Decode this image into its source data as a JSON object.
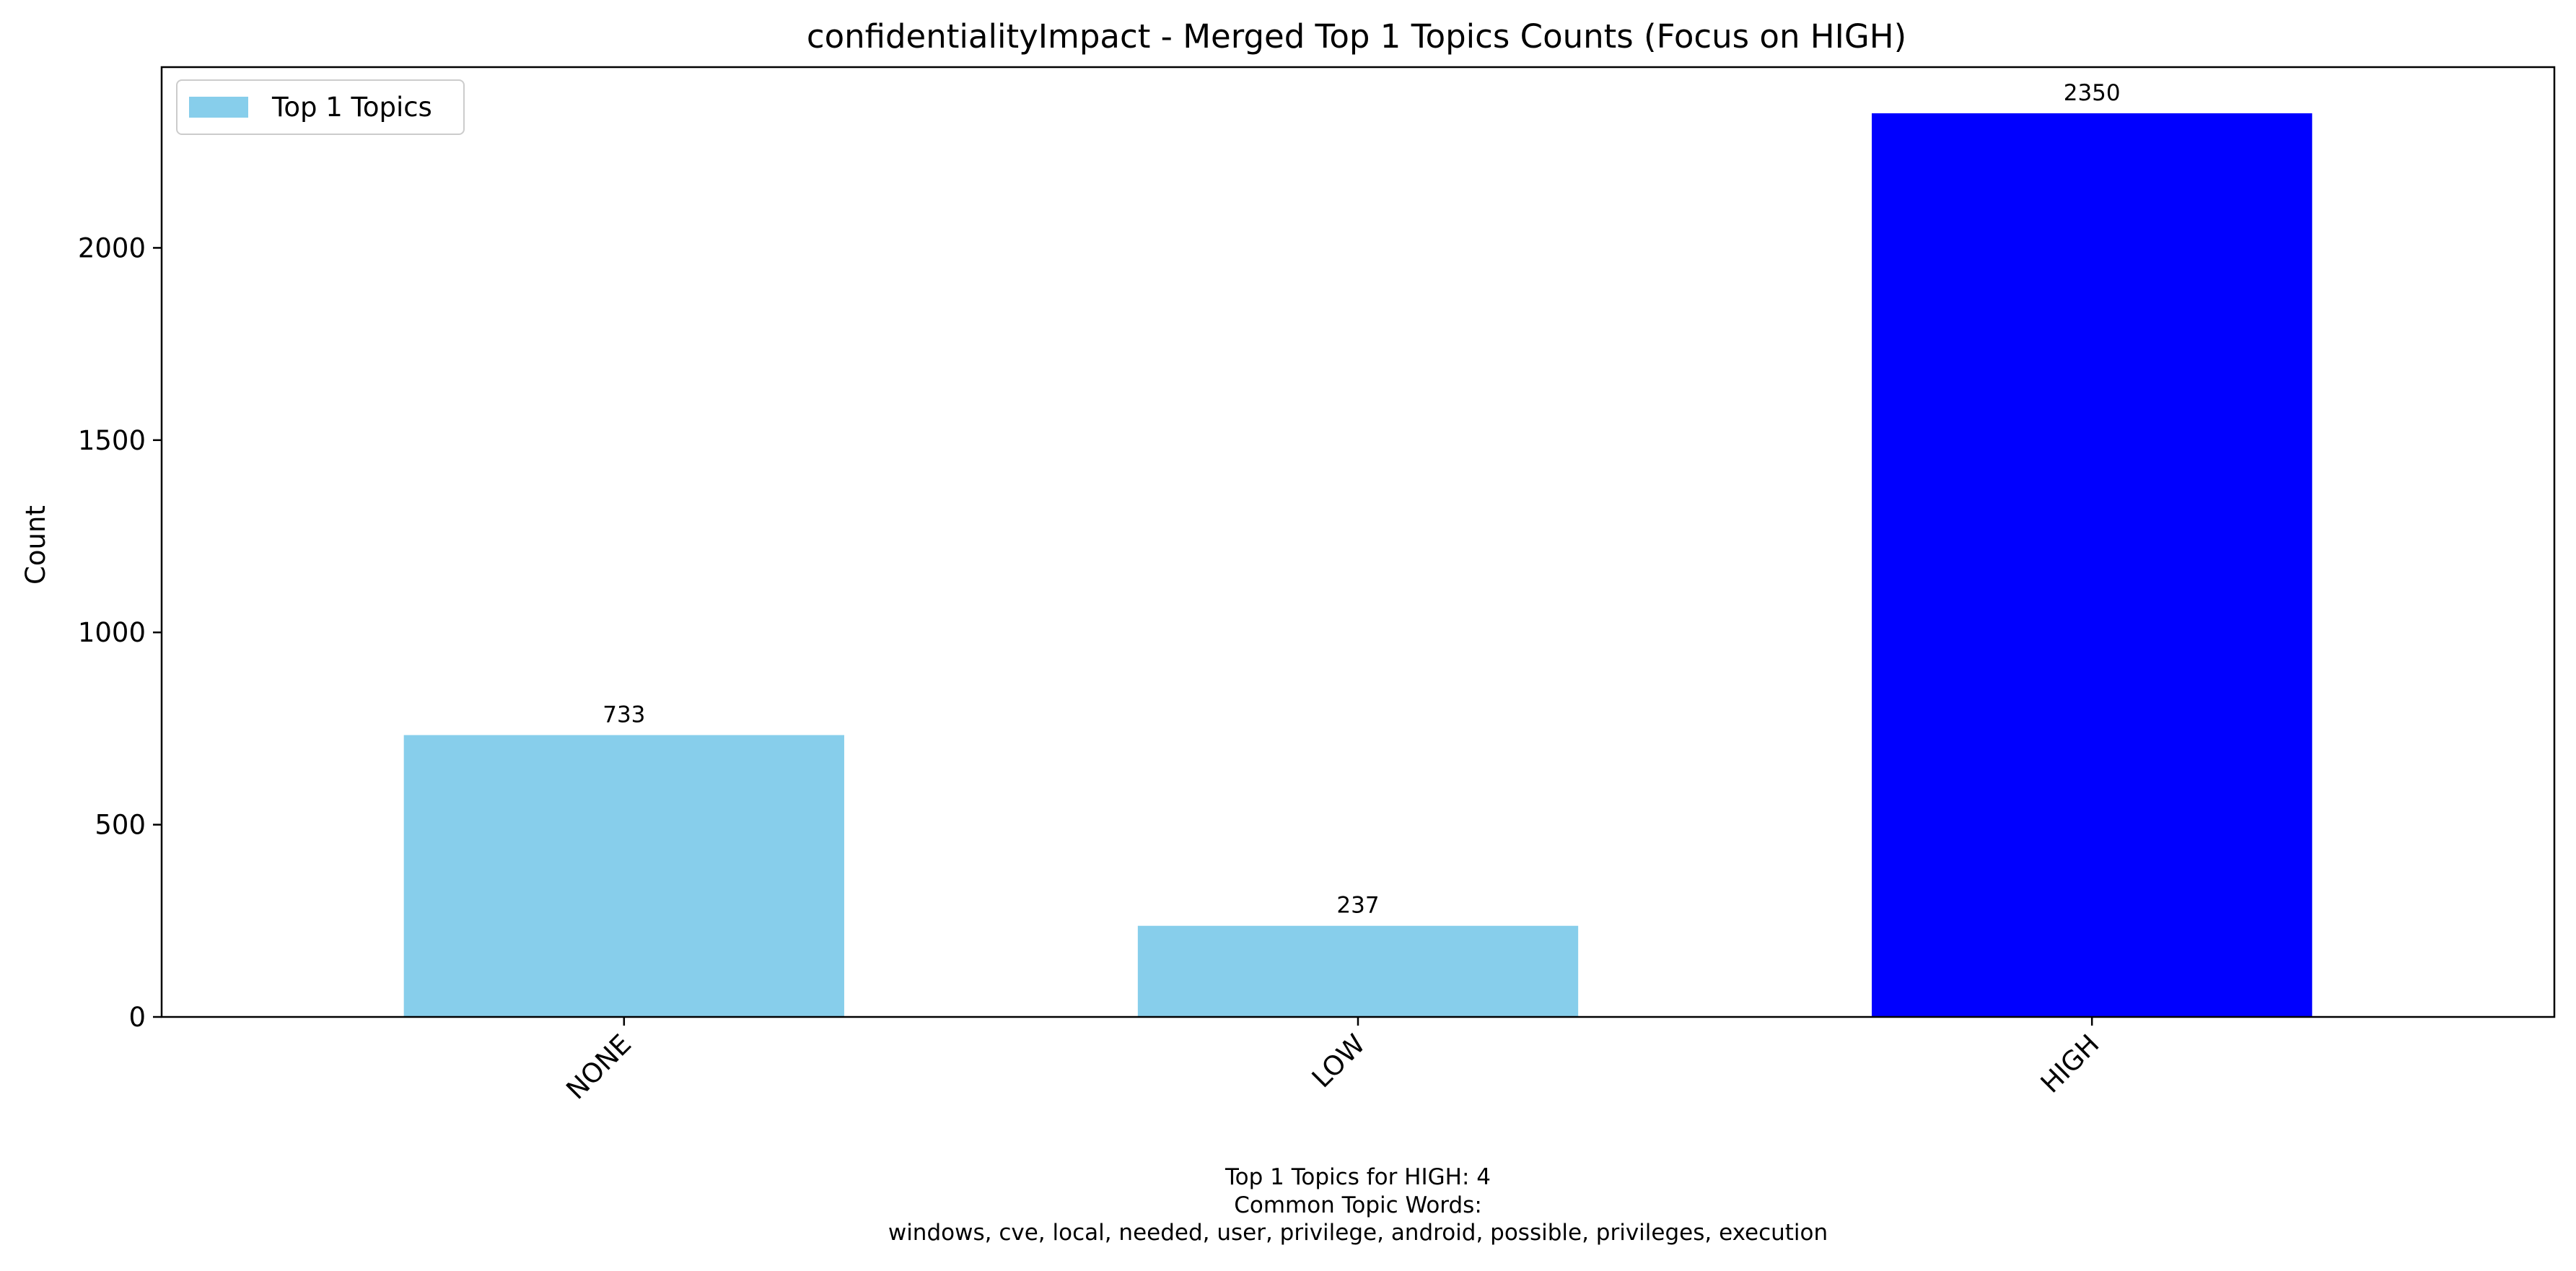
{
  "chart_data": {
    "type": "bar",
    "title": "confidentialityImpact - Merged Top 1 Topics Counts (Focus on HIGH)",
    "xlabel": "",
    "ylabel": "Count",
    "categories": [
      "NONE",
      "LOW",
      "HIGH"
    ],
    "series": [
      {
        "name": "Top 1 Topics",
        "values": [
          733,
          237,
          2350
        ]
      }
    ],
    "data_labels": [
      "733",
      "237",
      "2350"
    ],
    "ylim": [
      0,
      2470
    ],
    "yticks": [
      0,
      500,
      1000,
      1500,
      2000
    ],
    "ytick_labels": [
      "0",
      "500",
      "1000",
      "1500",
      "2000"
    ],
    "xtick_rotation_deg": 45,
    "grid": false,
    "legend": {
      "position": "upper-left",
      "entries": [
        "Top 1 Topics"
      ]
    },
    "colors": {
      "default_bar": "#87CEEB",
      "highlight_bar": "#0000FF",
      "highlight_category": "HIGH"
    }
  },
  "footer": {
    "lines": [
      "Top 1 Topics for HIGH: 4",
      "Common Topic Words:",
      "windows,  cve,  local,  needed,  user,  privilege,  android,  possible,  privileges,  execution"
    ]
  }
}
